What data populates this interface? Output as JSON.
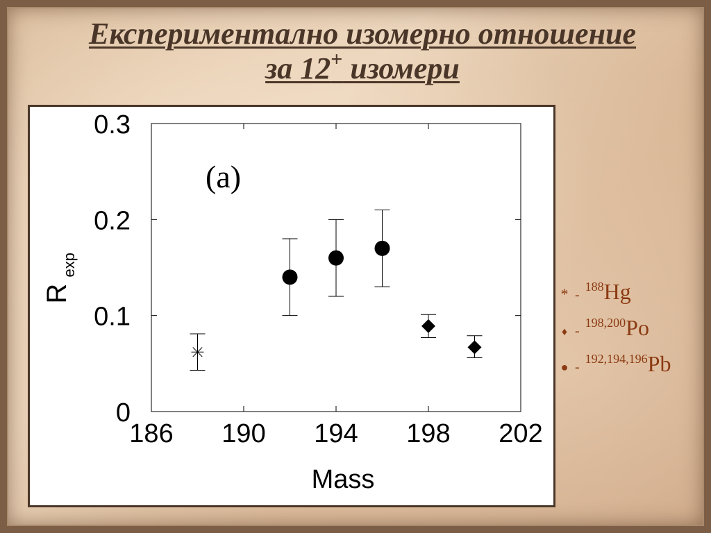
{
  "title": {
    "line1": "Експериментално изомерно отношение",
    "line2_prefix": "за 12",
    "line2_sup": "+",
    "line2_suffix": " изомери"
  },
  "chart_data": {
    "type": "scatter",
    "panel_label": "(a)",
    "xlabel": "Mass",
    "ylabel_main": "R",
    "ylabel_sub": "exp",
    "xlim": [
      186,
      202
    ],
    "ylim": [
      0,
      0.3
    ],
    "x_ticks": [
      186,
      190,
      194,
      198,
      202
    ],
    "x_tick_labels": [
      "186",
      "190",
      "194",
      "198",
      "202"
    ],
    "y_ticks": [
      0,
      0.1,
      0.2,
      0.3
    ],
    "y_tick_labels": [
      "0",
      "0.1",
      "0.2",
      "0.3"
    ],
    "grid": false,
    "series": [
      {
        "marker": "star",
        "points": [
          {
            "x": 188,
            "y": 0.062,
            "err_low": 0.043,
            "err_high": 0.081
          }
        ]
      },
      {
        "marker": "circle",
        "points": [
          {
            "x": 192,
            "y": 0.14,
            "err_low": 0.1,
            "err_high": 0.18
          },
          {
            "x": 194,
            "y": 0.16,
            "err_low": 0.12,
            "err_high": 0.2
          },
          {
            "x": 196,
            "y": 0.17,
            "err_low": 0.13,
            "err_high": 0.21
          }
        ]
      },
      {
        "marker": "diamond",
        "points": [
          {
            "x": 198,
            "y": 0.089,
            "err_low": 0.077,
            "err_high": 0.101
          },
          {
            "x": 200,
            "y": 0.067,
            "err_low": 0.056,
            "err_high": 0.079
          }
        ]
      }
    ]
  },
  "legend": [
    {
      "symbol": "*",
      "dash": "-",
      "isotopes": "188",
      "element": "Hg"
    },
    {
      "symbol": "♦",
      "dash": "-",
      "isotopes": "198,200",
      "element": "Po"
    },
    {
      "symbol": "●",
      "dash": "-",
      "isotopes": "192,194,196",
      "element": "Pb"
    }
  ],
  "colors": {
    "title": "#4a3628",
    "legend_text": "#8b3a12",
    "frame": "#4a3628",
    "background": "#e2c6a8"
  }
}
